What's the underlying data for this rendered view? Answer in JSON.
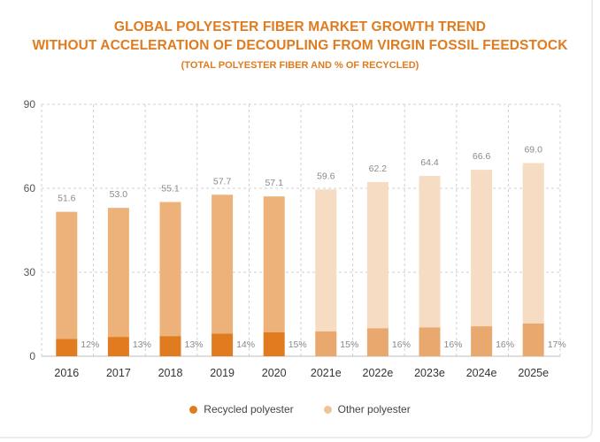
{
  "chart_data": {
    "type": "bar",
    "stacked": true,
    "title": "GLOBAL POLYESTER FIBER MARKET GROWTH TREND",
    "title_line2": "WITHOUT ACCELERATION OF DECOUPLING FROM VIRGIN FOSSIL FEEDSTOCK",
    "subtitle": "(TOTAL POLYESTER FIBER AND % OF RECYCLED)",
    "xlabel": "",
    "ylabel": "",
    "ylim": [
      0,
      90
    ],
    "yticks": [
      "0",
      "30",
      "60",
      "90"
    ],
    "categories": [
      "2016",
      "2017",
      "2018",
      "2019",
      "2020",
      "2021e",
      "2022e",
      "2023e",
      "2024e",
      "2025e"
    ],
    "estimated": [
      false,
      false,
      false,
      false,
      false,
      true,
      true,
      true,
      true,
      true
    ],
    "totals": [
      "51.6",
      "53.0",
      "55.1",
      "57.7",
      "57.1",
      "59.6",
      "62.2",
      "64.4",
      "66.6",
      "69.0"
    ],
    "recycled_share": [
      "12%",
      "13%",
      "13%",
      "14%",
      "15%",
      "15%",
      "16%",
      "16%",
      "16%",
      "17%"
    ],
    "series": [
      {
        "name": "Recycled polyester",
        "values": [
          6.2,
          6.9,
          7.2,
          8.1,
          8.6,
          8.9,
          10.0,
          10.3,
          10.7,
          11.7
        ]
      },
      {
        "name": "Other polyester",
        "values": [
          45.4,
          46.1,
          47.9,
          49.6,
          48.5,
          50.7,
          52.2,
          54.1,
          55.9,
          57.3
        ]
      }
    ],
    "grid": true,
    "legend_position": "bottom-center",
    "colors": {
      "recycled_actual": "#e07b1f",
      "recycled_estimate": "#e9a86d",
      "other_actual": "#edb27a",
      "other_estimate": "#f6dcc2",
      "grid": "#cfcfcf"
    }
  },
  "legend": {
    "recycled_label": "Recycled polyester",
    "other_label": "Other polyester",
    "recycled_color": "#e07b1f",
    "other_color": "#f0c498"
  }
}
